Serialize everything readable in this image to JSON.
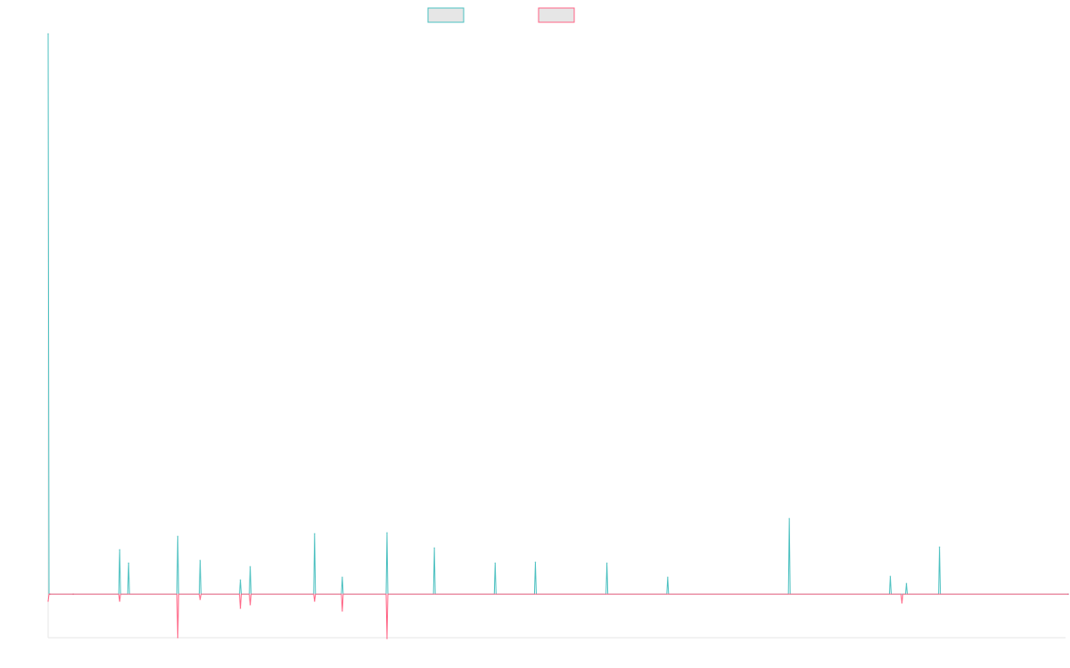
{
  "chart_data": {
    "type": "line",
    "title": "",
    "xlabel": "",
    "ylabel": "",
    "x_range": [
      0,
      1138
    ],
    "ylim": [
      -49,
      631
    ],
    "grid": false,
    "legend_position": "top-center",
    "series": [
      {
        "color": "#4bc0c0",
        "values": [
          [
            0,
            630
          ],
          [
            2,
            0
          ],
          [
            28,
            0
          ],
          [
            80,
            50
          ],
          [
            90,
            35
          ],
          [
            145,
            65
          ],
          [
            170,
            38
          ],
          [
            215,
            16
          ],
          [
            226,
            31
          ],
          [
            298,
            68
          ],
          [
            329,
            19
          ],
          [
            379,
            69
          ],
          [
            432,
            52
          ],
          [
            500,
            35
          ],
          [
            545,
            36
          ],
          [
            625,
            35
          ],
          [
            693,
            19
          ],
          [
            829,
            85
          ],
          [
            942,
            20
          ],
          [
            960,
            12
          ],
          [
            997,
            53
          ],
          [
            1141,
            0
          ]
        ]
      },
      {
        "color": "#ff6384",
        "values": [
          [
            0,
            -8
          ],
          [
            2,
            0
          ],
          [
            28,
            0
          ],
          [
            80,
            -8
          ],
          [
            145,
            -49
          ],
          [
            170,
            -6
          ],
          [
            215,
            -16
          ],
          [
            226,
            -12
          ],
          [
            298,
            -8
          ],
          [
            329,
            -19
          ],
          [
            379,
            -50
          ],
          [
            955,
            -10
          ],
          [
            1141,
            0
          ]
        ]
      }
    ]
  }
}
